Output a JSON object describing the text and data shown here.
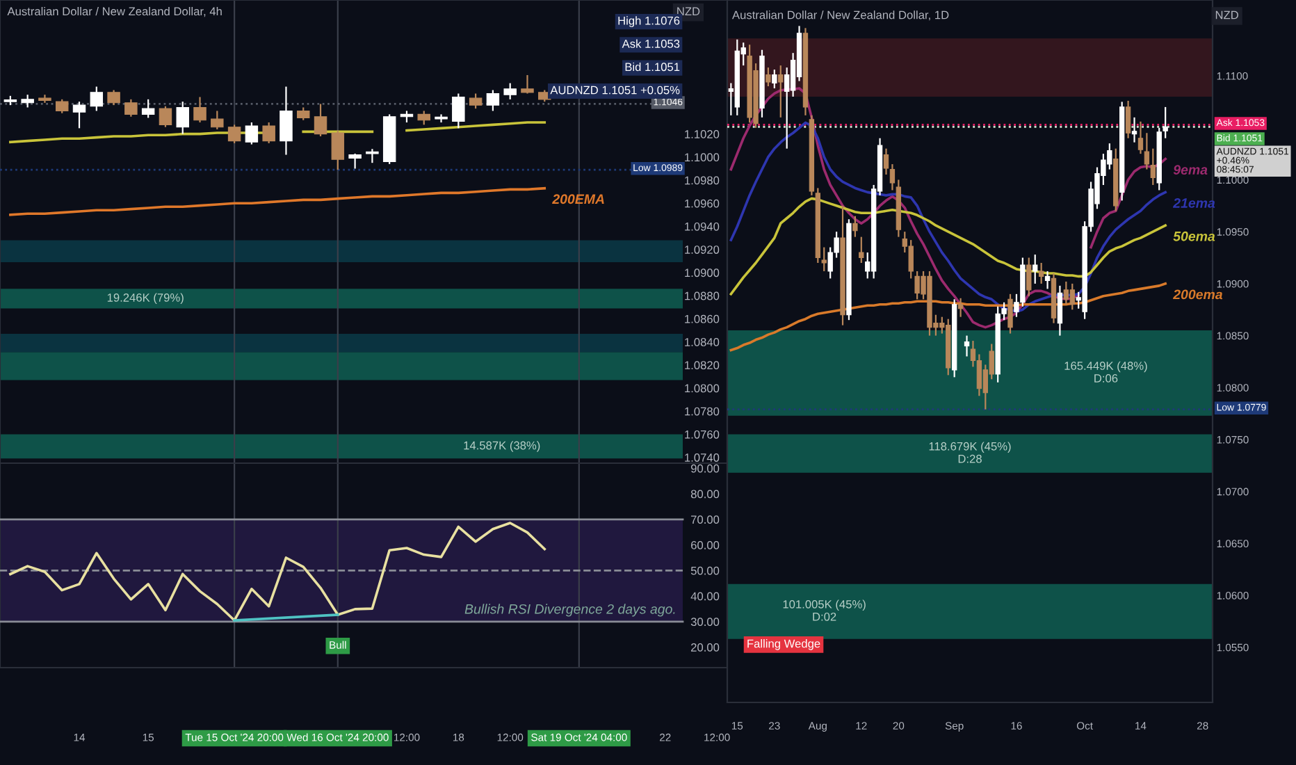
{
  "chart_data": [
    {
      "type": "candlestick",
      "title": "Australian Dollar / New Zealand Dollar, 4h",
      "ylabel": "NZD",
      "categories": [
        null,
        null,
        null,
        null,
        "14",
        null,
        null,
        null,
        "15",
        null,
        null,
        null,
        null,
        "Tue 15 Oct '24 20:00",
        null,
        null,
        null,
        null,
        null,
        "Wed 16 Oct '24 20:00",
        null,
        null,
        null,
        "12:00",
        null,
        null,
        "18",
        null,
        null,
        "12:00",
        null,
        null,
        null,
        "Sat 19 Oct '24 04:00",
        null,
        null,
        null,
        null,
        "22",
        null,
        null,
        "12:00"
      ],
      "ohlc": [
        [
          1.1048,
          1.1053,
          1.1045,
          1.1049
        ],
        [
          1.1047,
          1.1054,
          1.1043,
          1.105
        ],
        [
          1.1051,
          1.1054,
          1.1047,
          1.1049
        ],
        [
          1.1048,
          1.105,
          1.1038,
          1.104
        ],
        [
          1.1039,
          1.1048,
          1.1025,
          1.1045
        ],
        [
          1.1044,
          1.1061,
          1.104,
          1.1056
        ],
        [
          1.1056,
          1.1058,
          1.1045,
          1.1047
        ],
        [
          1.1047,
          1.105,
          1.1035,
          1.1037
        ],
        [
          1.1037,
          1.105,
          1.1034,
          1.1042
        ],
        [
          1.1042,
          1.1044,
          1.1026,
          1.1028
        ],
        [
          1.1026,
          1.1048,
          1.102,
          1.1043
        ],
        [
          1.1043,
          1.1052,
          1.103,
          1.1032
        ],
        [
          1.1033,
          1.104,
          1.1024,
          1.1026
        ],
        [
          1.1026,
          1.1028,
          1.1012,
          1.1014
        ],
        [
          1.1013,
          1.103,
          1.1011,
          1.1027
        ],
        [
          1.1027,
          1.103,
          1.1012,
          1.1014
        ],
        [
          1.1014,
          1.1061,
          1.1002,
          1.104
        ],
        [
          1.104,
          1.1043,
          1.1032,
          1.1034
        ],
        [
          1.1035,
          1.1046,
          1.1018,
          1.102
        ],
        [
          1.1021,
          1.1023,
          1.0989,
          1.0998
        ],
        [
          1.0999,
          1.1003,
          1.099,
          1.1002
        ],
        [
          1.1003,
          1.1007,
          1.0995,
          1.1003
        ],
        [
          1.0996,
          1.1037,
          1.0994,
          1.1035
        ],
        [
          1.1035,
          1.104,
          1.103,
          1.1037
        ],
        [
          1.1037,
          1.104,
          1.1028,
          1.1032
        ],
        [
          1.1033,
          1.1037,
          1.103,
          1.1033
        ],
        [
          1.1031,
          1.1055,
          1.1025,
          1.1052
        ],
        [
          1.1051,
          1.1055,
          1.1042,
          1.1045
        ],
        [
          1.1045,
          1.1058,
          1.104,
          1.1055
        ],
        [
          1.1054,
          1.1064,
          1.105,
          1.1059
        ],
        [
          1.1059,
          1.1071,
          1.1055,
          1.1056
        ],
        [
          1.1056,
          1.1058,
          1.1048,
          1.105
        ],
        null,
        null,
        null,
        null,
        null,
        null,
        null,
        null,
        null,
        null
      ],
      "series": [
        {
          "type": "line",
          "color": "#c9c43a",
          "values": [
            1.1013,
            1.1014,
            1.1015,
            1.1016,
            1.1016,
            1.1017,
            1.1018,
            1.1018,
            1.1019,
            1.1019,
            1.102,
            1.102,
            1.1021,
            1.1021,
            1.1021,
            1.1021,
            null,
            1.1022,
            1.1022,
            1.1022,
            1.1022,
            1.1022,
            null,
            1.1023,
            1.1024,
            1.1025,
            1.1026,
            1.1027,
            1.1028,
            1.1029,
            1.103,
            1.103,
            null,
            null,
            null,
            null,
            null,
            null,
            null,
            null,
            null,
            null
          ]
        },
        {
          "type": "line",
          "name": "200EMA",
          "color": "#e0782a",
          "values": [
            1.095,
            1.0951,
            1.0951,
            1.0952,
            1.0953,
            1.0954,
            1.0954,
            1.0955,
            1.0956,
            1.0957,
            1.0957,
            1.0958,
            1.0959,
            1.096,
            1.096,
            1.0961,
            1.0962,
            1.0963,
            1.0963,
            1.0964,
            1.0965,
            1.0966,
            1.0966,
            1.0967,
            1.0968,
            1.0969,
            1.0969,
            1.097,
            1.0971,
            1.0972,
            1.0972,
            1.0973,
            null,
            null,
            null,
            null,
            null,
            null,
            null,
            null,
            null,
            null
          ]
        }
      ],
      "ylim": [
        1.0735,
        1.1136
      ],
      "yticks": [
        {
          "value": 1.074,
          "label": "1.0740"
        },
        {
          "value": 1.076,
          "label": "1.0760"
        },
        {
          "value": 1.078,
          "label": "1.0780"
        },
        {
          "value": 1.08,
          "label": "1.0800"
        },
        {
          "value": 1.082,
          "label": "1.0820"
        },
        {
          "value": 1.084,
          "label": "1.0840"
        },
        {
          "value": 1.086,
          "label": "1.0860"
        },
        {
          "value": 1.088,
          "label": "1.0880"
        },
        {
          "value": 1.09,
          "label": "1.0900"
        },
        {
          "value": 1.092,
          "label": "1.0920"
        },
        {
          "value": 1.094,
          "label": "1.0940"
        },
        {
          "value": 1.096,
          "label": "1.0960"
        },
        {
          "value": 1.098,
          "label": "1.0980"
        },
        {
          "value": 1.1,
          "label": "1.1000"
        },
        {
          "value": 1.102,
          "label": "1.1020"
        }
      ],
      "tick_labels": "y",
      "bands": [
        {
          "axis": "y",
          "from": 1.0909,
          "to": 1.0928,
          "color": "#0b3a48"
        },
        {
          "axis": "y",
          "from": 1.0869,
          "to": 1.0886,
          "color": "#0f5e52",
          "label": "19.246K (79%)"
        },
        {
          "axis": "y",
          "from": 1.0831,
          "to": 1.0847,
          "color": "#0b3a48"
        },
        {
          "axis": "y",
          "from": 1.0807,
          "to": 1.0831,
          "color": "#0f5e52"
        },
        {
          "axis": "y",
          "from": 1.0739,
          "to": 1.076,
          "color": "#0f5e52",
          "label": "14.587K (38%)"
        }
      ],
      "ref_lines": [
        {
          "axis": "x",
          "value": "Tue 15 Oct '24 20:00",
          "color": "#3a3e4a"
        },
        {
          "axis": "x",
          "value": "Wed 16 Oct '24 20:00",
          "color": "#3a3e4a"
        },
        {
          "axis": "x",
          "value": "Sat 19 Oct '24 04:00",
          "color": "#3a3e4a"
        },
        {
          "axis": "y",
          "value": 1.1046,
          "label": "1.1046",
          "color": "#555a66",
          "line_style": "dotted"
        },
        {
          "axis": "y",
          "value": 1.0989,
          "label": "Low 1.0989",
          "color": "#1e3a78",
          "line_style": "dotted"
        }
      ],
      "annotations": [
        "High 1.1076",
        "Ask 1.1053",
        "Bid 1.1051",
        "AUDNZD 1.1051 +0.05%"
      ]
    },
    {
      "type": "line",
      "categories": [
        null,
        null,
        null,
        null,
        "14",
        null,
        null,
        null,
        "15",
        null,
        null,
        null,
        null,
        "Tue 15 Oct '24 20:00",
        null,
        null,
        null,
        null,
        null,
        "Wed 16 Oct '24 20:00",
        null,
        null,
        null,
        "12:00",
        null,
        null,
        "18",
        null,
        null,
        "12:00",
        null,
        null,
        null,
        "Sat 19 Oct '24 04:00",
        null,
        null,
        null,
        null,
        "22",
        null,
        null,
        "12:00"
      ],
      "series": [
        {
          "type": "line",
          "color": "#e8e0a0",
          "values": [
            48.6,
            51.7,
            49.5,
            42.3,
            44.7,
            56.8,
            46.8,
            38.7,
            44.7,
            34.5,
            48.6,
            41.9,
            36.9,
            30.5,
            42.8,
            36.0,
            55.0,
            51.4,
            43.2,
            32.7,
            34.9,
            35.1,
            57.9,
            58.8,
            56.2,
            55.3,
            67.1,
            61.3,
            66.2,
            68.6,
            64.9,
            58.4,
            null,
            null,
            null,
            null,
            null,
            null,
            null,
            null,
            null,
            null
          ]
        },
        {
          "type": "line",
          "color": "#4fc3c3",
          "x": [
            "Tue 15 Oct '24 20:00",
            "Wed 16 Oct '24 20:00"
          ],
          "values": [
            30.5,
            32.7
          ]
        }
      ],
      "ylim": [
        12,
        92
      ],
      "yticks": [
        {
          "value": 20,
          "label": "20.00"
        },
        {
          "value": 30,
          "label": "30.00"
        },
        {
          "value": 40,
          "label": "40.00"
        },
        {
          "value": 50,
          "label": "50.00"
        },
        {
          "value": 60,
          "label": "60.00"
        },
        {
          "value": 70,
          "label": "70.00"
        },
        {
          "value": 80,
          "label": "80.00"
        },
        {
          "value": 90,
          "label": "90.00"
        }
      ],
      "bands": [
        {
          "axis": "y",
          "from": 30,
          "to": 70,
          "color": "#241a45"
        }
      ],
      "ref_lines": [
        {
          "axis": "y",
          "value": 70,
          "color": "#8a8d96",
          "line_style": "solid"
        },
        {
          "axis": "y",
          "value": 50,
          "color": "#8a8d96",
          "line_style": "dashed"
        },
        {
          "axis": "y",
          "value": 30,
          "color": "#8a8d96",
          "line_style": "solid"
        },
        {
          "axis": "x",
          "value": "Tue 15 Oct '24 20:00",
          "color": "#3a3e4a"
        },
        {
          "axis": "x",
          "value": "Wed 16 Oct '24 20:00",
          "color": "#3a3e4a"
        },
        {
          "axis": "x",
          "value": "Sat 19 Oct '24 04:00",
          "color": "#3a3e4a"
        }
      ],
      "annotations": [
        {
          "text": "Bull",
          "x": "Wed 16 Oct '24 20:00",
          "y": 30
        },
        "Bullish RSI Divergence 2 days ago."
      ]
    },
    {
      "type": "candlestick",
      "title": "Australian Dollar / New Zealand Dollar, 1D",
      "ylabel": "NZD",
      "categories": [
        null,
        "15",
        null,
        null,
        null,
        null,
        null,
        "23",
        null,
        null,
        null,
        null,
        null,
        null,
        "Aug",
        null,
        null,
        null,
        null,
        null,
        null,
        "12",
        null,
        null,
        null,
        null,
        null,
        "20",
        null,
        null,
        null,
        null,
        null,
        null,
        null,
        null,
        "Sep",
        null,
        null,
        null,
        null,
        null,
        null,
        null,
        null,
        null,
        "16",
        null,
        null,
        null,
        null,
        null,
        null,
        null,
        null,
        null,
        null,
        "Oct",
        null,
        null,
        null,
        null,
        null,
        null,
        null,
        null,
        "14",
        null,
        null,
        null,
        null,
        null,
        null,
        null,
        null,
        null,
        "28",
        null
      ],
      "ohlc": [
        [
          1.1085,
          1.1093,
          1.1062,
          1.1085
        ],
        [
          1.107,
          1.1135,
          1.1062,
          1.1124
        ],
        [
          1.1121,
          1.1132,
          1.111,
          1.1127
        ],
        [
          1.1119,
          1.113,
          1.1055,
          1.106
        ],
        [
          1.1105,
          1.1112,
          1.105,
          1.1054
        ],
        [
          1.1069,
          1.1125,
          1.106,
          1.1119
        ],
        [
          1.1101,
          1.1108,
          1.109,
          1.1094
        ],
        [
          1.1093,
          1.1106,
          1.1088,
          1.1101
        ],
        [
          1.1101,
          1.111,
          1.106,
          1.1094
        ],
        [
          1.1085,
          1.1108,
          1.103,
          1.1101
        ],
        [
          1.1086,
          1.1122,
          1.108,
          1.1115
        ],
        [
          1.1099,
          1.1148,
          1.1095,
          1.1141
        ],
        [
          1.1141,
          1.1146,
          1.1062,
          1.107
        ],
        [
          1.1058,
          1.1062,
          1.0985,
          1.0989
        ],
        [
          1.0987,
          1.0992,
          1.092,
          1.0925
        ],
        [
          1.0921,
          1.0935,
          1.0912,
          1.092
        ],
        [
          1.0912,
          1.0935,
          1.0905,
          1.093
        ],
        [
          1.093,
          1.095,
          1.0925,
          1.0944
        ],
        [
          1.0944,
          1.0975,
          1.086,
          1.087
        ],
        [
          1.087,
          1.0962,
          1.0865,
          1.0958
        ],
        [
          1.0958,
          1.0965,
          1.0945,
          1.0951
        ],
        [
          1.093,
          1.0945,
          1.092,
          1.0925
        ],
        [
          1.0912,
          1.093,
          1.0905,
          1.0921
        ],
        [
          1.0912,
          1.0995,
          1.0905,
          1.0991
        ],
        [
          1.0989,
          1.104,
          1.0985,
          1.1033
        ],
        [
          1.1024,
          1.103,
          1.1005,
          1.1011
        ],
        [
          1.101,
          1.1015,
          1.099,
          1.0997
        ],
        [
          1.0993,
          1.1,
          1.0945,
          1.0952
        ],
        [
          1.0943,
          1.095,
          1.093,
          1.0936
        ],
        [
          1.0936,
          1.0942,
          1.0905,
          1.0912
        ],
        [
          1.0907,
          1.0912,
          1.0885,
          1.0891
        ],
        [
          1.0907,
          1.0912,
          1.0885,
          1.089
        ],
        [
          1.0907,
          1.0912,
          1.085,
          1.0858
        ],
        [
          1.0862,
          1.087,
          1.085,
          1.0858
        ],
        [
          1.0862,
          1.0868,
          1.0852,
          1.0858
        ],
        [
          1.086,
          1.0866,
          1.0812,
          1.0819
        ],
        [
          1.0817,
          1.0885,
          1.081,
          1.088
        ],
        [
          1.088,
          1.0886,
          1.0868,
          1.0876
        ],
        [
          1.084,
          1.085,
          1.083,
          1.0844
        ],
        [
          1.0837,
          1.0845,
          1.082,
          1.0826
        ],
        [
          1.0826,
          1.0832,
          1.0792,
          1.0799
        ],
        [
          1.0817,
          1.0822,
          1.0779,
          1.0795
        ],
        [
          1.0835,
          1.0842,
          1.0808,
          1.0813
        ],
        [
          1.0813,
          1.0878,
          1.0805,
          1.0871
        ],
        [
          1.0871,
          1.0882,
          1.0865,
          1.0876
        ],
        [
          1.0885,
          1.089,
          1.0852,
          1.0858
        ],
        [
          1.0873,
          1.089,
          1.0868,
          1.0882
        ],
        [
          1.0882,
          1.0925,
          1.0878,
          1.0918
        ],
        [
          1.0918,
          1.0925,
          1.0888,
          1.0894
        ],
        [
          1.0912,
          1.0928,
          1.09,
          1.0918
        ],
        [
          1.0912,
          1.092,
          1.09,
          1.0907
        ],
        [
          1.0903,
          1.0912,
          1.0895,
          1.0907
        ],
        [
          1.0905,
          1.091,
          1.0862,
          1.0867
        ],
        [
          1.0862,
          1.0898,
          1.085,
          1.0891
        ],
        [
          1.0894,
          1.0902,
          1.088,
          1.0885
        ],
        [
          1.0894,
          1.09,
          1.0875,
          1.088
        ],
        [
          1.0884,
          1.0892,
          1.0876,
          1.0884
        ],
        [
          1.0873,
          1.096,
          1.0866,
          1.0955
        ],
        [
          1.0955,
          1.0998,
          1.095,
          1.0991
        ],
        [
          1.0977,
          1.1012,
          1.0972,
          1.1006
        ],
        [
          1.1004,
          1.1025,
          1.0995,
          1.1019
        ],
        [
          1.1015,
          1.1035,
          1.101,
          1.1028
        ],
        [
          1.102,
          1.103,
          1.097,
          1.0975
        ],
        [
          1.0988,
          1.1075,
          1.098,
          1.107
        ],
        [
          1.107,
          1.1076,
          1.104,
          1.1045
        ],
        [
          1.1044,
          1.106,
          1.1036,
          1.1044
        ],
        [
          1.104,
          1.1056,
          1.1025,
          1.1029
        ],
        [
          1.1027,
          1.1045,
          1.101,
          1.1015
        ],
        [
          1.1014,
          1.103,
          1.0995,
          1.1002
        ],
        [
          1.0997,
          1.105,
          1.099,
          1.1046
        ],
        [
          1.1047,
          1.107,
          1.104,
          1.1051
        ],
        null,
        null,
        null,
        null,
        null,
        null,
        null
      ],
      "series": [
        {
          "type": "line",
          "name": "9ema",
          "color": "#9c2a6e",
          "values": [
            1.101,
            1.1025,
            1.104,
            1.1052,
            1.1062,
            1.107,
            1.1078,
            1.1083,
            1.1086,
            1.1087,
            1.1087,
            1.1088,
            1.1083,
            1.106,
            1.1033,
            1.101,
            1.0995,
            1.0985,
            1.0975,
            1.0968,
            1.0962,
            1.0958,
            1.0962,
            1.0968,
            1.0975,
            1.098,
            1.0984,
            1.098,
            1.0973,
            1.096,
            1.0948,
            1.0938,
            1.0926,
            1.0914,
            1.0903,
            1.0895,
            1.0888,
            1.088,
            1.0872,
            1.0863,
            1.086,
            1.0858,
            1.086,
            1.0863,
            1.0866,
            1.0868,
            1.0872,
            1.088,
            1.089,
            1.0893,
            1.0893,
            1.0891,
            1.0888,
            1.0886,
            1.0885,
            1.0886,
            1.0889,
            null,
            1.0935,
            1.095,
            1.0963,
            1.0968,
            1.097,
            1.0985,
            1.1,
            1.1008,
            1.1012,
            1.1013,
            1.1012,
            1.1015,
            1.102,
            null,
            null,
            null,
            null,
            null,
            null,
            null
          ]
        },
        {
          "type": "line",
          "name": "21ema",
          "color": "#2e36b0",
          "values": [
            1.0942,
            1.0955,
            1.097,
            1.0985,
            1.0998,
            1.101,
            1.1022,
            1.103,
            1.1036,
            1.1041,
            1.1045,
            1.105,
            1.1055,
            1.1052,
            1.104,
            1.1022,
            1.101,
            1.1003,
            1.0998,
            1.0995,
            1.0992,
            1.099,
            1.0988,
            1.0987,
            1.0986,
            1.0985,
            1.0986,
            1.0986,
            1.0984,
            1.0983,
            1.0975,
            1.0962,
            1.095,
            1.094,
            1.093,
            1.0922,
            1.0913,
            1.0905,
            1.09,
            1.0895,
            1.089,
            1.0887,
            1.0885,
            1.088,
            1.0876,
            1.0875,
            1.0873,
            1.0875,
            1.088,
            1.0883,
            1.0885,
            1.0887,
            1.0889,
            1.0889,
            1.0889,
            1.0889,
            1.089,
            1.0897,
            1.091,
            1.0925,
            1.0936,
            1.0945,
            1.0952,
            1.0957,
            1.0962,
            1.0966,
            1.097,
            1.0976,
            1.0981,
            1.0985,
            1.0988,
            null,
            null,
            null,
            null,
            null,
            null,
            null
          ]
        },
        {
          "type": "line",
          "name": "50ema",
          "color": "#c9c43a",
          "values": [
            1.089,
            1.0898,
            1.0906,
            1.0913,
            1.092,
            1.0928,
            1.0936,
            1.0944,
            1.0958,
            1.0963,
            1.0968,
            1.0974,
            1.0979,
            1.0982,
            1.0981,
            1.0979,
            1.0977,
            1.0975,
            1.0973,
            1.0971,
            1.0969,
            1.0968,
            1.0968,
            1.0968,
            1.0969,
            1.097,
            1.0971,
            1.097,
            1.0969,
            1.0968,
            1.0966,
            1.0963,
            1.096,
            1.0956,
            1.0953,
            1.095,
            1.0947,
            1.0944,
            1.0941,
            1.0938,
            1.0934,
            1.093,
            1.0926,
            1.0922,
            1.092,
            1.0917,
            1.0914,
            1.0913,
            1.0912,
            1.0912,
            1.0911,
            1.091,
            1.091,
            1.0909,
            1.0908,
            1.0908,
            1.0907,
            1.0907,
            1.0911,
            1.0918,
            1.0925,
            1.0931,
            1.0934,
            1.0936,
            1.0939,
            1.0942,
            1.0944,
            1.0947,
            1.095,
            1.0953,
            1.0956,
            null,
            null,
            null,
            null,
            null,
            null,
            null
          ]
        },
        {
          "type": "line",
          "name": "200ema",
          "color": "#d97a2a",
          "values": [
            1.0836,
            1.0838,
            1.0841,
            1.0843,
            1.0846,
            1.0848,
            1.0851,
            1.0853,
            1.0856,
            1.0858,
            1.0861,
            1.0864,
            1.0866,
            1.0869,
            1.0871,
            1.0872,
            1.0873,
            1.0874,
            1.0875,
            1.0876,
            1.0877,
            1.0878,
            1.0879,
            1.0879,
            1.088,
            1.088,
            1.0881,
            1.0881,
            1.0882,
            1.0882,
            1.0883,
            1.0883,
            1.0883,
            1.0883,
            1.0882,
            1.0882,
            1.0881,
            1.0881,
            1.088,
            1.088,
            1.088,
            1.0879,
            1.0879,
            1.0879,
            1.0879,
            1.0879,
            1.0879,
            1.088,
            1.088,
            1.088,
            1.088,
            1.088,
            1.088,
            1.088,
            1.088,
            1.0881,
            1.0881,
            1.0882,
            1.0884,
            1.0886,
            1.0888,
            1.0889,
            1.089,
            1.0891,
            1.0893,
            1.0894,
            1.0895,
            1.0896,
            1.0897,
            1.0898,
            1.09,
            null,
            null,
            null,
            null,
            null,
            null,
            null
          ]
        }
      ],
      "ylim": [
        1.0497,
        1.1173
      ],
      "yticks": [
        {
          "value": 1.055,
          "label": "1.0550"
        },
        {
          "value": 1.06,
          "label": "1.0600"
        },
        {
          "value": 1.065,
          "label": "1.0650"
        },
        {
          "value": 1.07,
          "label": "1.0700"
        },
        {
          "value": 1.075,
          "label": "1.0750"
        },
        {
          "value": 1.08,
          "label": "1.0800"
        },
        {
          "value": 1.085,
          "label": "1.0850"
        },
        {
          "value": 1.09,
          "label": "1.0900"
        },
        {
          "value": 1.095,
          "label": "1.0950"
        },
        {
          "value": 1.1,
          "label": "1.1000"
        },
        {
          "value": 1.11,
          "label": "1.1100"
        }
      ],
      "bands": [
        {
          "axis": "y",
          "from": 1.108,
          "to": 1.1136,
          "color": "#3b1820"
        },
        {
          "axis": "y",
          "from": 1.0773,
          "to": 1.0855,
          "color": "#0f5e52",
          "label": "165.449K (48%)\nD:06"
        },
        {
          "axis": "y",
          "from": 1.0718,
          "to": 1.0755,
          "color": "#0f5e52",
          "label": "118.679K (45%)\nD:28"
        },
        {
          "axis": "y",
          "from": 1.0558,
          "to": 1.0611,
          "color": "#0f5e52",
          "label": "101.005K (45%)\nD:02"
        }
      ],
      "ref_lines": [
        {
          "axis": "y",
          "value": 1.1053,
          "label": "Ask 1.1053",
          "color": "#e91e63",
          "line_style": "dotted"
        },
        {
          "axis": "y",
          "value": 1.1051,
          "label": "Bid 1.1051",
          "color": "#4caf50",
          "line_style": "dotted"
        },
        {
          "axis": "y",
          "value": 1.1051,
          "label": "AUDNZD 1.1051\n+0.46%\n08:45:07",
          "color": "#d0d0d0",
          "line_style": "dotted"
        },
        {
          "axis": "y",
          "value": 1.0779,
          "label": "Low 1.0779",
          "color": "#1e3a78",
          "line_style": "dotted"
        }
      ],
      "annotations": [
        "Falling Wedge"
      ]
    }
  ]
}
